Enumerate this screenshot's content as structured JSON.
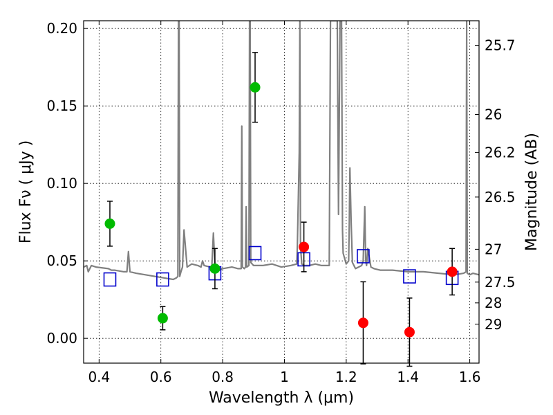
{
  "chart_data": {
    "type": "scatter",
    "xlabel": "Wavelength  λ (μm)",
    "ylabel": "Flux  Fν  ( μJy )",
    "ylabel_right": "Magnitude (AB)",
    "xlim": [
      0.35,
      1.63
    ],
    "ylim": [
      -0.016,
      0.205
    ],
    "grid": true,
    "xticks": [
      0.4,
      0.6,
      0.8,
      1.0,
      1.2,
      1.4,
      1.6
    ],
    "xtick_labels": [
      "0.4",
      "0.6",
      "0.8",
      "1",
      "1.2",
      "1.4",
      "1.6"
    ],
    "yticks": [
      0.0,
      0.05,
      0.1,
      0.15,
      0.2
    ],
    "ytick_labels": [
      "0.00",
      "0.05",
      "0.10",
      "0.15",
      "0.20"
    ],
    "right_ticks": [
      {
        "label": "25.7",
        "flux": 0.1891
      },
      {
        "label": "26",
        "flux": 0.1445
      },
      {
        "label": "26.2",
        "flux": 0.12
      },
      {
        "label": "26.5",
        "flux": 0.0912
      },
      {
        "label": "27",
        "flux": 0.0575
      },
      {
        "label": "27.5",
        "flux": 0.0363
      },
      {
        "label": "28",
        "flux": 0.0229
      },
      {
        "label": "29",
        "flux": 0.0091
      }
    ],
    "colors": {
      "observed_green": "#00bb00",
      "observed_red": "#ff0000",
      "model_band": "#0000cc",
      "spectrum": "#808080",
      "errorbar": "#000000"
    },
    "series": [
      {
        "marker": "filled-circle",
        "color": "green",
        "points": [
          {
            "x": 0.435,
            "y": 0.074,
            "err": 0.0145
          },
          {
            "x": 0.606,
            "y": 0.013,
            "err": 0.0075
          },
          {
            "x": 0.775,
            "y": 0.045,
            "err": 0.013
          },
          {
            "x": 0.905,
            "y": 0.162,
            "err": 0.0225
          }
        ]
      },
      {
        "marker": "filled-circle",
        "color": "red",
        "points": [
          {
            "x": 1.063,
            "y": 0.059,
            "err": 0.016
          },
          {
            "x": 1.255,
            "y": 0.01,
            "err": 0.0265
          },
          {
            "x": 1.405,
            "y": 0.004,
            "err": 0.022
          },
          {
            "x": 1.543,
            "y": 0.043,
            "err": 0.015
          }
        ]
      },
      {
        "marker": "open-square",
        "color": "blue",
        "points": [
          {
            "x": 0.435,
            "y": 0.038
          },
          {
            "x": 0.606,
            "y": 0.038
          },
          {
            "x": 0.775,
            "y": 0.042
          },
          {
            "x": 0.905,
            "y": 0.055
          },
          {
            "x": 1.063,
            "y": 0.051
          },
          {
            "x": 1.255,
            "y": 0.053
          },
          {
            "x": 1.405,
            "y": 0.04
          },
          {
            "x": 1.543,
            "y": 0.039
          }
        ]
      },
      {
        "type": "line",
        "color": "gray",
        "x": [
          0.35,
          0.36,
          0.365,
          0.375,
          0.39,
          0.43,
          0.44,
          0.45,
          0.48,
          0.49,
          0.495,
          0.5,
          0.52,
          0.55,
          0.58,
          0.61,
          0.64,
          0.65,
          0.655,
          0.657,
          0.659,
          0.661,
          0.665,
          0.67,
          0.675,
          0.685,
          0.7,
          0.72,
          0.73,
          0.735,
          0.74,
          0.76,
          0.765,
          0.77,
          0.775,
          0.79,
          0.8,
          0.83,
          0.85,
          0.86,
          0.862,
          0.864,
          0.87,
          0.874,
          0.876,
          0.878,
          0.885,
          0.887,
          0.889,
          0.891,
          0.9,
          0.93,
          0.96,
          0.99,
          1.02,
          1.04,
          1.042,
          1.048,
          1.05,
          1.052,
          1.056,
          1.065,
          1.08,
          1.1,
          1.12,
          1.145,
          1.149,
          1.152,
          1.16,
          1.165,
          1.168,
          1.171,
          1.175,
          1.18,
          1.185,
          1.188,
          1.19,
          1.2,
          1.208,
          1.21,
          1.212,
          1.216,
          1.22,
          1.23,
          1.25,
          1.255,
          1.26,
          1.263,
          1.266,
          1.27,
          1.28,
          1.29,
          1.31,
          1.35,
          1.4,
          1.45,
          1.5,
          1.55,
          1.58,
          1.588,
          1.59,
          1.592,
          1.6,
          1.61,
          1.63
        ],
        "y": [
          0.046,
          0.047,
          0.043,
          0.047,
          0.046,
          0.045,
          0.044,
          0.044,
          0.043,
          0.043,
          0.056,
          0.043,
          0.042,
          0.041,
          0.04,
          0.039,
          0.038,
          0.039,
          0.04,
          0.205,
          0.205,
          0.04,
          0.043,
          0.046,
          0.07,
          0.046,
          0.048,
          0.047,
          0.046,
          0.05,
          0.047,
          0.046,
          0.047,
          0.068,
          0.047,
          0.044,
          0.045,
          0.046,
          0.045,
          0.045,
          0.137,
          0.046,
          0.045,
          0.046,
          0.085,
          0.046,
          0.047,
          0.205,
          0.205,
          0.049,
          0.047,
          0.047,
          0.048,
          0.046,
          0.047,
          0.048,
          0.06,
          0.12,
          0.205,
          0.06,
          0.048,
          0.047,
          0.047,
          0.048,
          0.047,
          0.047,
          0.205,
          0.205,
          0.205,
          0.205,
          0.205,
          0.205,
          0.08,
          0.205,
          0.205,
          0.07,
          0.055,
          0.048,
          0.05,
          0.075,
          0.11,
          0.075,
          0.049,
          0.045,
          0.047,
          0.05,
          0.085,
          0.05,
          0.047,
          0.058,
          0.046,
          0.045,
          0.044,
          0.044,
          0.043,
          0.043,
          0.042,
          0.041,
          0.042,
          0.043,
          0.205,
          0.042,
          0.041,
          0.042,
          0.041
        ]
      }
    ]
  }
}
